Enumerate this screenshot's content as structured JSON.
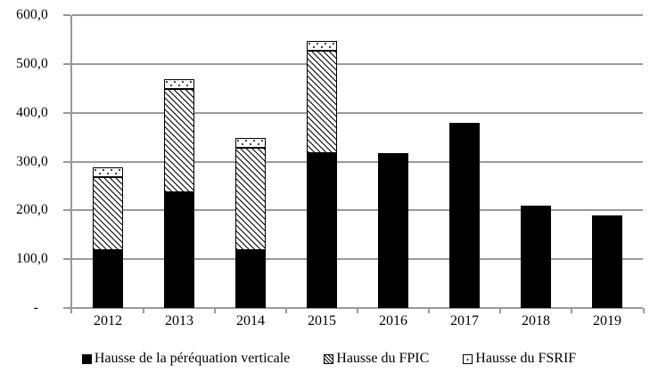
{
  "chart_data": {
    "type": "bar",
    "stacked": true,
    "title": "",
    "xlabel": "",
    "ylabel": "",
    "categories": [
      "2012",
      "2013",
      "2014",
      "2015",
      "2016",
      "2017",
      "2018",
      "2019"
    ],
    "series": [
      {
        "name": "Hausse de la péréquation verticale",
        "pattern": "solid-black",
        "values": [
          119,
          238,
          119,
          317,
          317,
          380,
          210,
          190
        ]
      },
      {
        "name": "Hausse du FPIC",
        "pattern": "diagonal-hatch",
        "values": [
          150,
          210,
          210,
          210,
          0,
          0,
          0,
          0
        ]
      },
      {
        "name": "Hausse du FSRIF",
        "pattern": "dotted",
        "values": [
          20,
          20,
          20,
          20,
          0,
          0,
          0,
          0
        ]
      }
    ],
    "ylim": [
      0,
      600
    ],
    "ytick_step": 100,
    "ytick_labels_bottom_to_top": [
      "-",
      "100,0",
      "200,0",
      "300,0",
      "400,0",
      "500,0",
      "600,0"
    ],
    "grid": true,
    "legend_position": "bottom"
  },
  "colors": {
    "gridline": "#999999",
    "axis": "#999999",
    "bar_fill": "#000000",
    "background": "#ffffff",
    "text": "#000000"
  },
  "legend": {
    "marker_icons": [
      "black-square-marker",
      "hatch-square-marker",
      "dotted-square-marker"
    ]
  }
}
